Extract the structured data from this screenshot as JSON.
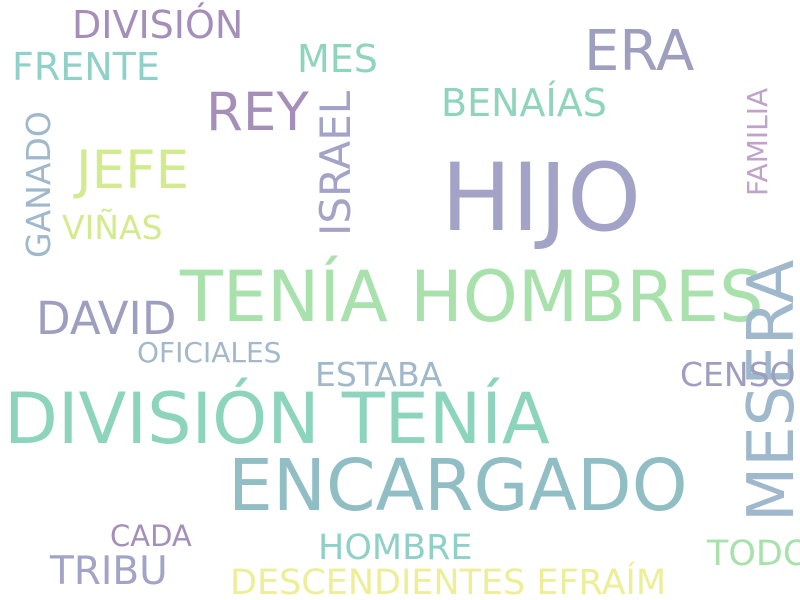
{
  "word_cloud": {
    "words": [
      {
        "text": "HIJO",
        "color": "#a3a3c7",
        "rotated": false
      },
      {
        "text": "TENÍA HOMBRES",
        "color": "#a8e1ac",
        "rotated": false
      },
      {
        "text": "DIVISIÓN TENÍA",
        "color": "#8cd4bc",
        "rotated": false
      },
      {
        "text": "ENCARGADO",
        "color": "#90bec4",
        "rotated": false
      },
      {
        "text": "MESERA",
        "color": "#9fb8cb",
        "rotated": true
      },
      {
        "text": "ERA",
        "color": "#9e9ebf",
        "rotated": false
      },
      {
        "text": "REY",
        "color": "#a58fba",
        "rotated": false
      },
      {
        "text": "JEFE",
        "color": "#d3eb8f",
        "rotated": false
      },
      {
        "text": "DAVID",
        "color": "#9e9ec1",
        "rotated": false
      },
      {
        "text": "DIVISIÓN",
        "color": "#a58fba",
        "rotated": false
      },
      {
        "text": "FRENTE",
        "color": "#8fd1c8",
        "rotated": false
      },
      {
        "text": "MES",
        "color": "#8fd4bd",
        "rotated": false
      },
      {
        "text": "BENAÍAS",
        "color": "#8fd4bd",
        "rotated": false
      },
      {
        "text": "ISRAEL",
        "color": "#a3a3c7",
        "rotated": true
      },
      {
        "text": "GANADO",
        "color": "#9fb8cb",
        "rotated": true
      },
      {
        "text": "VIÑAS",
        "color": "#d3eb8f",
        "rotated": false
      },
      {
        "text": "FAMILIA",
        "color": "#c0a3c9",
        "rotated": true
      },
      {
        "text": "OFICIALES",
        "color": "#a3b8c9",
        "rotated": false
      },
      {
        "text": "ESTABA",
        "color": "#9fb8cb",
        "rotated": false
      },
      {
        "text": "CENSO",
        "color": "#9e9ec1",
        "rotated": false
      },
      {
        "text": "CADA",
        "color": "#a58fba",
        "rotated": false
      },
      {
        "text": "TRIBU",
        "color": "#a3a3c7",
        "rotated": false
      },
      {
        "text": "HOMBRE",
        "color": "#8fd1c8",
        "rotated": false
      },
      {
        "text": "TODO",
        "color": "#a8e1ac",
        "rotated": false
      },
      {
        "text": "DESCENDIENTES EFRAÍM",
        "color": "#eeee99",
        "rotated": false
      }
    ]
  }
}
